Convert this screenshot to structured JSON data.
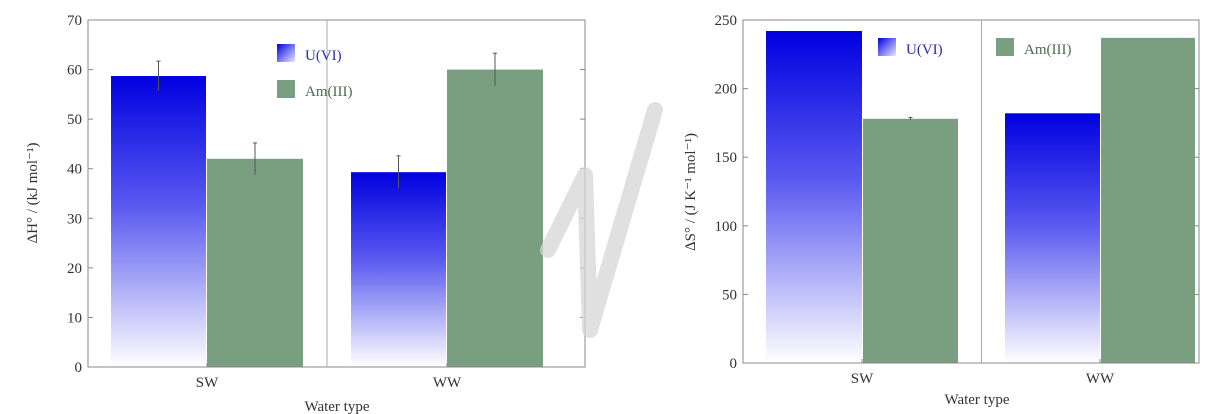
{
  "chart_data": [
    {
      "type": "bar",
      "categories": [
        "SW",
        "WW"
      ],
      "series": [
        {
          "name": "U(VI)",
          "values": [
            58.7,
            39.3
          ],
          "errors": [
            3.0,
            3.3
          ],
          "color": "#0a0ae6",
          "gradient": true
        },
        {
          "name": "Am(III)",
          "values": [
            42.0,
            60.0
          ],
          "errors": [
            3.2,
            3.3
          ],
          "color": "#7a9e80",
          "gradient": false
        }
      ],
      "xlabel": "Water type",
      "ylabel": "ΔH° / (kJ mol⁻¹)",
      "ylim": [
        0,
        70
      ],
      "yticks": [
        0,
        10,
        20,
        30,
        40,
        50,
        60,
        70
      ],
      "legend": "top-center",
      "grid": false
    },
    {
      "type": "bar",
      "categories": [
        "SW",
        "WW"
      ],
      "series": [
        {
          "name": "U(VI)",
          "values": [
            242,
            182
          ],
          "errors": [
            0,
            0
          ],
          "color": "#0a0ae6",
          "gradient": true
        },
        {
          "name": "Am(III)",
          "values": [
            178,
            237
          ],
          "errors": [
            1,
            0
          ],
          "color": "#7a9e80",
          "gradient": false
        }
      ],
      "xlabel": "Water type",
      "ylabel": "ΔS° / (J K⁻¹ mol⁻¹)",
      "ylim": [
        0,
        250
      ],
      "yticks": [
        0,
        50,
        100,
        150,
        200,
        250
      ],
      "legend": "top-center",
      "grid": false
    }
  ],
  "colors": {
    "axis": "#888888",
    "text": "#333333",
    "separator": "#aaaaaa",
    "watermark": "#d6d6d6"
  }
}
